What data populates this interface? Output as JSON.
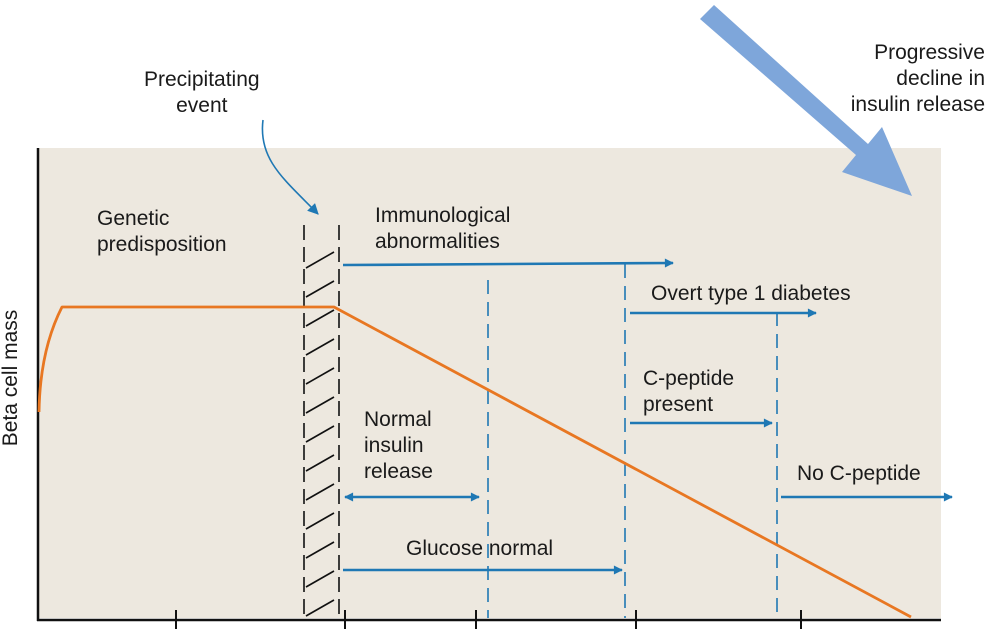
{
  "y_axis_label": "Beta cell mass",
  "labels": {
    "precipitating_event": "Precipitating\nevent",
    "genetic_predisposition": "Genetic\npredisposition",
    "immunological_abnormalities": "Immunological\nabnormalities",
    "overt_type1_diabetes": "Overt type 1 diabetes",
    "c_peptide_present": "C-peptide\npresent",
    "normal_insulin_release": "Normal\ninsulin\nrelease",
    "no_c_peptide": "No C-peptide",
    "glucose_normal": "Glucose normal",
    "progressive_decline": "Progressive\ndecline in\ninsulin release"
  },
  "colors": {
    "panel_background": "#ede8df",
    "beta_cell_line": "#e87722",
    "arrows": "#1f78b4",
    "big_arrow": "#7ea6da",
    "axis": "#111111"
  }
}
